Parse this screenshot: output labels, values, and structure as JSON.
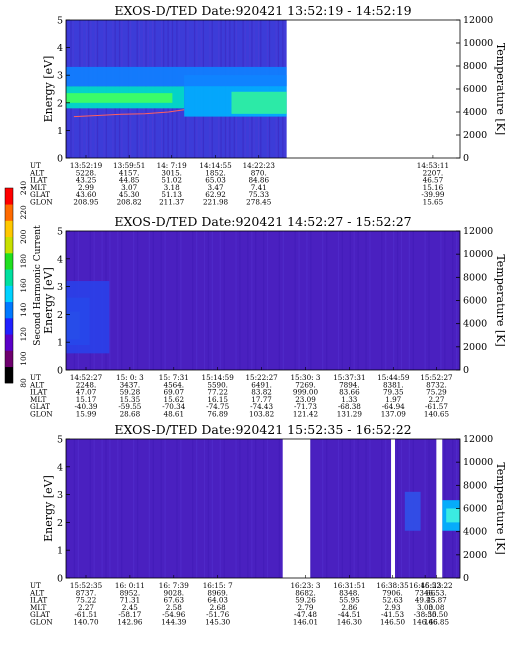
{
  "colorbar": {
    "label": "Second Harmonic Current",
    "ticks": [
      "80",
      "100",
      "120",
      "140",
      "160",
      "180",
      "200",
      "220",
      "240"
    ],
    "colors": [
      "#000000",
      "#6e006e",
      "#5a00c8",
      "#2020ff",
      "#0078ff",
      "#00d2ff",
      "#00e0a0",
      "#20e020",
      "#c8e000",
      "#ffc800",
      "#ff6a00",
      "#ff0000"
    ]
  },
  "chart_data": [
    {
      "type": "heatmap",
      "title": "EXOS-D/TED   Date:920421   13:52:19 - 14:52:19",
      "ylabel": "Energy [eV]",
      "y2label": "Temperature [K]",
      "ylim": [
        0,
        5
      ],
      "y2lim": [
        0,
        12000
      ],
      "yticks": [
        "0",
        "1",
        "2",
        "3",
        "4",
        "5"
      ],
      "y2ticks": [
        "0",
        "2000",
        "4000",
        "6000",
        "8000",
        "10000",
        "12000"
      ],
      "data_extent_fraction": 0.56,
      "background": "#3c3cd8",
      "bands": [
        {
          "y0": 1.8,
          "y1": 2.6,
          "x0": 0.0,
          "x1": 0.3,
          "color": "#00e0c8"
        },
        {
          "y0": 2.0,
          "y1": 2.35,
          "x0": 0.0,
          "x1": 0.27,
          "color": "#40ff60"
        },
        {
          "y0": 1.5,
          "y1": 3.0,
          "x0": 0.3,
          "x1": 0.56,
          "color": "#00b0ff"
        },
        {
          "y0": 1.6,
          "y1": 2.4,
          "x0": 0.42,
          "x1": 0.56,
          "color": "#30f0a0"
        },
        {
          "y0": 2.6,
          "y1": 3.3,
          "x0": 0.0,
          "x1": 0.56,
          "color": "#1080ff"
        }
      ],
      "temperature_series": [
        [
          0.02,
          3600
        ],
        [
          0.08,
          3700
        ],
        [
          0.14,
          3800
        ],
        [
          0.2,
          3850
        ],
        [
          0.26,
          4000
        ],
        [
          0.3,
          4200
        ]
      ],
      "ephemeris": {
        "labels": [
          "UT",
          "ALT",
          "ILAT",
          "MLT",
          "GLAT",
          "GLON"
        ],
        "columns": [
          {
            "pos": 0.0,
            "values": [
              "13:52:19",
              "5228.",
              "43.25",
              "2.99",
              "43.60",
              "208.95"
            ]
          },
          {
            "pos": 0.122,
            "values": [
              "13:59:51",
              "4157.",
              "44.85",
              "3.07",
              "45.30",
              "208.82"
            ]
          },
          {
            "pos": 0.242,
            "values": [
              "14: 7:19",
              "3015.",
              "51.02",
              "3.18",
              "51.13",
              "211.37"
            ]
          },
          {
            "pos": 0.366,
            "values": [
              "14:14:55",
              "1852.",
              "65.03",
              "3.47",
              "62.92",
              "221.98"
            ]
          },
          {
            "pos": 0.488,
            "values": [
              "14:22:23",
              "870.",
              "84.86",
              "7.41",
              "75.33",
              "278.45"
            ]
          },
          {
            "pos": 0.98,
            "values": [
              "14:53:11",
              "2207.",
              "46.57",
              "15.16",
              "-39.99",
              "15.65"
            ]
          }
        ]
      }
    },
    {
      "type": "heatmap",
      "title": "EXOS-D/TED   Date:920421   14:52:27 - 15:52:27",
      "ylabel": "Energy [eV]",
      "y2label": "Temperature [K]",
      "ylim": [
        0,
        5
      ],
      "y2lim": [
        0,
        12000
      ],
      "yticks": [
        "0",
        "1",
        "2",
        "3",
        "4",
        "5"
      ],
      "y2ticks": [
        "0",
        "2000",
        "4000",
        "6000",
        "8000",
        "10000",
        "12000"
      ],
      "data_extent_fraction": 1.0,
      "background": "#4a20c0",
      "bands": [
        {
          "y0": 0.9,
          "y1": 2.6,
          "x0": 0.0,
          "x1": 0.06,
          "color": "#0090ff"
        },
        {
          "y0": 1.1,
          "y1": 2.1,
          "x0": 0.0,
          "x1": 0.035,
          "color": "#00d8f0"
        },
        {
          "y0": 0.6,
          "y1": 3.2,
          "x0": 0.0,
          "x1": 0.11,
          "color": "#2a40e8"
        }
      ],
      "temperature_series": [],
      "ephemeris": {
        "labels": [
          "UT",
          "ALT",
          "ILAT",
          "MLT",
          "GLAT",
          "GLON"
        ],
        "columns": [
          {
            "pos": 0.0,
            "values": [
              "14:52:27",
              "2248.",
              "47.07",
              "15.17",
              "-40.39",
              "15.99"
            ]
          },
          {
            "pos": 0.124,
            "values": [
              "15: 0: 3",
              "3437.",
              "59.28",
              "15.35",
              "-59.55",
              "28.68"
            ]
          },
          {
            "pos": 0.248,
            "values": [
              "15: 7:31",
              "4564.",
              "69.07",
              "15.62",
              "-70.34",
              "48.61"
            ]
          },
          {
            "pos": 0.372,
            "values": [
              "15:14:59",
              "5590.",
              "77.22",
              "16.15",
              "-74.75",
              "76.89"
            ]
          },
          {
            "pos": 0.496,
            "values": [
              "15:22:27",
              "6491.",
              "83.82",
              "17.77",
              "-74.43",
              "103.82"
            ]
          },
          {
            "pos": 0.62,
            "values": [
              "15:30: 3",
              "7269.",
              "999.00",
              "23.09",
              "-71.73",
              "121.42"
            ]
          },
          {
            "pos": 0.744,
            "values": [
              "15:37:31",
              "7894.",
              "83.66",
              "1.33",
              "-68.38",
              "131.29"
            ]
          },
          {
            "pos": 0.868,
            "values": [
              "15:44:59",
              "8381.",
              "79.35",
              "1.97",
              "-64.94",
              "137.09"
            ]
          },
          {
            "pos": 0.99,
            "values": [
              "15:52:27",
              "8732.",
              "75.29",
              "2.27",
              "-61.57",
              "140.65"
            ]
          }
        ]
      }
    },
    {
      "type": "heatmap",
      "title": "EXOS-D/TED   Date:920421   15:52:35 - 16:52:22",
      "ylabel": "Energy [eV]",
      "y2label": "Temperature [K]",
      "ylim": [
        0,
        5
      ],
      "y2lim": [
        0,
        12000
      ],
      "yticks": [
        "0",
        "1",
        "2",
        "3",
        "4",
        "5"
      ],
      "y2ticks": [
        "0",
        "2000",
        "4000",
        "6000",
        "8000",
        "10000",
        "12000"
      ],
      "data_extent_fraction": 1.0,
      "background": "#4a20c0",
      "gaps": [
        [
          0.55,
          0.62
        ],
        [
          0.825,
          0.835
        ],
        [
          0.94,
          0.955
        ]
      ],
      "bands": [
        {
          "y0": 1.7,
          "y1": 2.8,
          "x0": 0.955,
          "x1": 1.0,
          "color": "#00b8ff"
        },
        {
          "y0": 2.0,
          "y1": 2.5,
          "x0": 0.965,
          "x1": 1.0,
          "color": "#40f0e0"
        },
        {
          "y0": 1.7,
          "y1": 3.1,
          "x0": 0.86,
          "x1": 0.9,
          "color": "#3050e8"
        }
      ],
      "temperature_series": [],
      "ephemeris": {
        "labels": [
          "UT",
          "ALT",
          "ILAT",
          "MLT",
          "GLAT",
          "GLON"
        ],
        "columns": [
          {
            "pos": 0.0,
            "values": [
              "15:52:35",
              "8737.",
              "75.22",
              "2.27",
              "-61.51",
              "140.70"
            ]
          },
          {
            "pos": 0.124,
            "values": [
              "16: 0:11",
              "8952.",
              "71.31",
              "2.45",
              "-58.17",
              "142.96"
            ]
          },
          {
            "pos": 0.248,
            "values": [
              "16: 7:39",
              "9028.",
              "67.63",
              "2.58",
              "-54.96",
              "144.39"
            ]
          },
          {
            "pos": 0.372,
            "values": [
              "16:15: 7",
              "8969.",
              "64.03",
              "2.68",
              "-51.76",
              "145.30"
            ]
          },
          {
            "pos": 0.62,
            "values": [
              "16:23: 3",
              "8682.",
              "59.26",
              "2.79",
              "-47.48",
              "146.01"
            ]
          },
          {
            "pos": 0.744,
            "values": [
              "16:31:51",
              "8348.",
              "55.95",
              "2.86",
              "-44.51",
              "146.30"
            ]
          },
          {
            "pos": 0.866,
            "values": [
              "16:38:35",
              "7906.",
              "52.63",
              "2.93",
              "-41.53",
              "146.50"
            ]
          },
          {
            "pos": 0.958,
            "values": [
              "16:45:23",
              "7346.",
              "49.25",
              "3.00",
              "-38.50",
              "146.66"
            ]
          },
          {
            "pos": 0.99,
            "values": [
              "16:52:22",
              "6653.",
              "45.87",
              "3.08",
              "-35.50",
              "146.85"
            ]
          }
        ]
      }
    }
  ]
}
